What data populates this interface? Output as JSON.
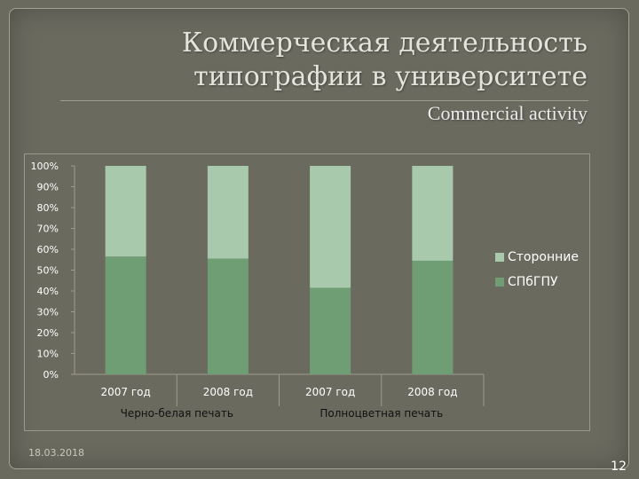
{
  "slide": {
    "title_line1": "Коммерческая деятельность",
    "title_line2": "типографии в университете",
    "subtitle": "Commercial activity",
    "date": "18.03.2018",
    "page_number": "12"
  },
  "colors": {
    "spbgpu": "#6f9e74",
    "external": "#a8c9ab"
  },
  "chart_data": {
    "type": "bar",
    "stacked": true,
    "percent": true,
    "categories": [
      "2007 год",
      "2008 год",
      "2007 год",
      "2008 год"
    ],
    "groups": [
      {
        "label": "Черно-белая печать",
        "categories": [
          "2007 год",
          "2008 год"
        ]
      },
      {
        "label": "Полноцветная печать",
        "categories": [
          "2007 год",
          "2008 год"
        ]
      }
    ],
    "series": [
      {
        "name": "СПбГПУ",
        "values": [
          56.5,
          55.5,
          41.5,
          54.5
        ]
      },
      {
        "name": "Сторонние",
        "values": [
          43.5,
          44.5,
          58.5,
          45.5
        ]
      }
    ],
    "y_ticks": [
      "0%",
      "10%",
      "20%",
      "30%",
      "40%",
      "50%",
      "60%",
      "70%",
      "80%",
      "90%",
      "100%"
    ],
    "ylim": [
      0,
      100
    ],
    "grid": false,
    "legend_position": "right"
  }
}
